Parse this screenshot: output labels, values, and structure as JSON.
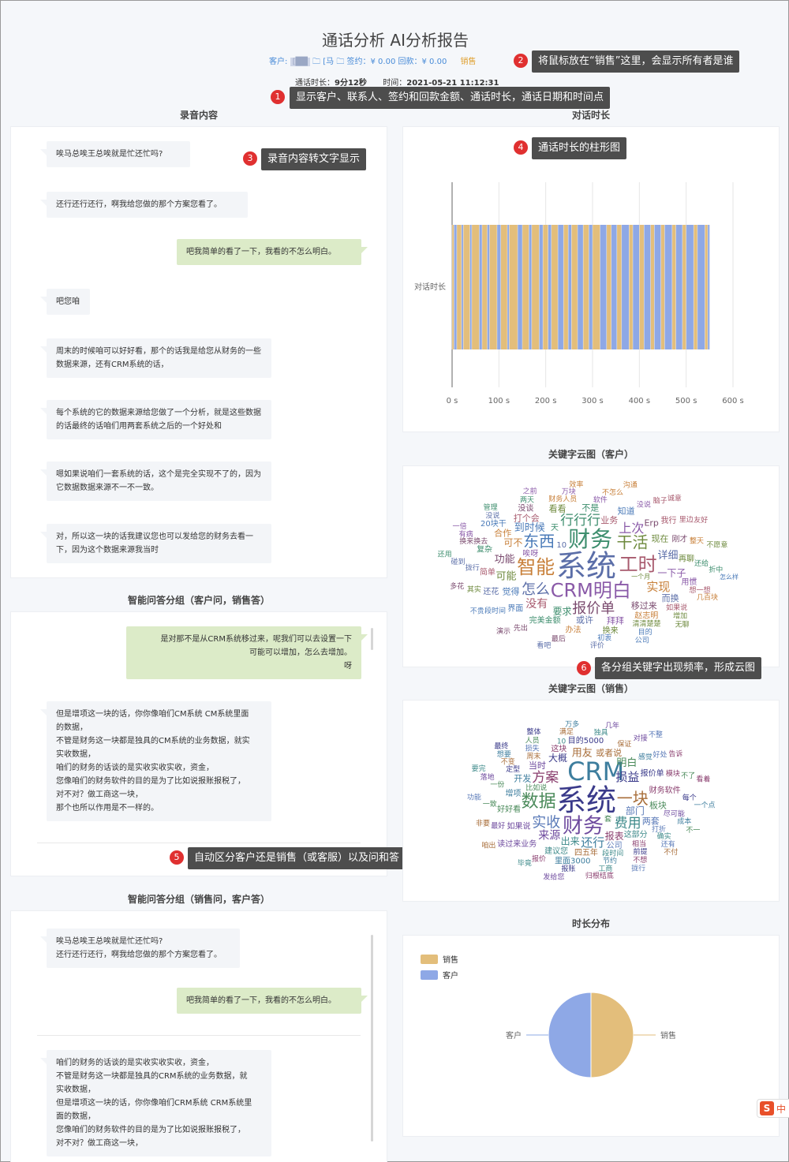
{
  "header": {
    "title": "通话分析 AI分析报告",
    "customer_label": "客户:",
    "customer_name": "[██",
    "contact_name": "[马",
    "sign_label": "签约：",
    "sign_value": "¥ 0.00",
    "refund_label": "回款：",
    "refund_value": "¥ 0.00",
    "sales_label": "销售",
    "duration_label": "通话时长：",
    "duration_value": "9分12秒",
    "time_label": "时间：",
    "time_value": "2021-05-21 11:12:31"
  },
  "callouts": [
    {
      "num": "1",
      "text": "显示客户、联系人、签约和回款金额、通话时长，通话日期和时间点"
    },
    {
      "num": "2",
      "text": "将鼠标放在“销售”这里，会显示所有者是谁"
    },
    {
      "num": "3",
      "text": "录音内容转文字显示"
    },
    {
      "num": "4",
      "text": "通话时长的柱形图"
    },
    {
      "num": "5",
      "text": "自动区分客户还是销售（或客服）以及问和答"
    },
    {
      "num": "6",
      "text": "各分组关键字出现频率，形成云图"
    }
  ],
  "sections": {
    "recording": "录音内容",
    "duration": "对话时长",
    "qa_customer": "智能问答分组（客户问，销售答）",
    "qa_sales": "智能问答分组（销售问，客户答）",
    "wc_customer": "关键字云图（客户）",
    "wc_sales": "关键字云图（销售）",
    "distribution": "时长分布"
  },
  "recording_messages": [
    {
      "side": "left",
      "text": "唉马总唉王总唉就是忙还忙吗?"
    },
    {
      "side": "left",
      "text": "还行还行还行，啊我给您做的那个方案您看了。"
    },
    {
      "side": "right",
      "text": "吧我简单的看了一下，我看的不怎么明白。"
    },
    {
      "side": "left",
      "text": "吧您咱"
    },
    {
      "side": "left",
      "text": "周末的时候咱可以好好看，那个的话我是给您从财务的一些数据来源，还有CRM系统的话，"
    },
    {
      "side": "left",
      "text": "每个系统的它的数据来源给您做了一个分析，就是这些数据的话最终的话咱们用两套系统之后的一个好处和"
    },
    {
      "side": "left",
      "text": "嗯如果说咱们一套系统的话，这个是完全实现不了的，因为它数据数据来源不一不一致。"
    },
    {
      "side": "left",
      "text": "对，所以这一块的话我建议您也可以发给您的财务去看一下，因为这个数据来源我当时"
    }
  ],
  "qa_customer_messages": [
    {
      "side": "right",
      "lines": [
        "是对那不是从CRM系统移过来，呢我们可以去设置一下",
        "可能可以增加，怎么去增加。"
      ],
      "end": "呀"
    },
    {
      "side": "left",
      "lines": [
        "但是增项这一块的话，你你像咱们CM系统 CM系统里面",
        "的数据，",
        "不管是财务这一块都是独具的CM系统的业务数据，就实",
        "实收数据，",
        "咱们的财务的话谈的是实收实收实收，资金，",
        "您像咱们的财务软件的目的是为了比如说报账报税了，",
        "对不对？做工商这一块，",
        "那个也所以作用是不一样的。"
      ]
    }
  ],
  "qa_sales_messages": [
    {
      "side": "left",
      "lines": [
        "唉马总唉王总唉就是忙还忙吗?",
        "还行还行还行，啊我给您做的那个方案您看了。"
      ]
    },
    {
      "side": "right",
      "lines": [
        "吧我简单的看了一下，我看的不怎么明白。"
      ]
    },
    {
      "side": "left",
      "lines": [
        "咱们的财务的话谈的是实收实收实收，资金，",
        "不管是财务这一块都是独具的CRM系统的业务数据，就",
        "实收数据，",
        "但是增项这一块的话，你你像咱们CRM系统 CRM系统里",
        "面的数据，",
        "您像咱们的财务软件的目的是为了比如说报账报税了，",
        "对不对？做工商这一块，"
      ]
    }
  ],
  "chart_data": [
    {
      "type": "bar",
      "orientation": "horizontal",
      "categories": [
        "对话时长"
      ],
      "xlim": [
        0,
        600
      ],
      "x_ticks": [
        "0 s",
        "100 s",
        "200 s",
        "300 s",
        "400 s",
        "500 s",
        "600 s"
      ],
      "total": 550,
      "series": [
        {
          "name": "销售",
          "color": "#e3be7b"
        },
        {
          "name": "客户",
          "color": "#8ea8e6"
        }
      ],
      "segments": [
        [
          0,
          4,
          0
        ],
        [
          4,
          10,
          1
        ],
        [
          10,
          20,
          0
        ],
        [
          20,
          24,
          1
        ],
        [
          24,
          38,
          0
        ],
        [
          38,
          42,
          1
        ],
        [
          42,
          58,
          0
        ],
        [
          58,
          64,
          1
        ],
        [
          64,
          75,
          0
        ],
        [
          75,
          80,
          1
        ],
        [
          80,
          96,
          0
        ],
        [
          96,
          104,
          1
        ],
        [
          104,
          118,
          0
        ],
        [
          118,
          122,
          1
        ],
        [
          122,
          140,
          0
        ],
        [
          140,
          150,
          1
        ],
        [
          150,
          164,
          0
        ],
        [
          164,
          170,
          1
        ],
        [
          170,
          186,
          0
        ],
        [
          186,
          194,
          1
        ],
        [
          194,
          205,
          0
        ],
        [
          205,
          212,
          1
        ],
        [
          212,
          226,
          0
        ],
        [
          226,
          238,
          1
        ],
        [
          238,
          248,
          0
        ],
        [
          248,
          255,
          1
        ],
        [
          255,
          268,
          0
        ],
        [
          268,
          280,
          1
        ],
        [
          280,
          292,
          0
        ],
        [
          292,
          300,
          1
        ],
        [
          300,
          316,
          0
        ],
        [
          316,
          330,
          1
        ],
        [
          330,
          340,
          0
        ],
        [
          340,
          352,
          1
        ],
        [
          352,
          362,
          0
        ],
        [
          362,
          378,
          1
        ],
        [
          378,
          386,
          0
        ],
        [
          386,
          400,
          1
        ],
        [
          400,
          410,
          0
        ],
        [
          410,
          424,
          1
        ],
        [
          424,
          432,
          0
        ],
        [
          432,
          446,
          1
        ],
        [
          446,
          454,
          0
        ],
        [
          454,
          470,
          1
        ],
        [
          470,
          478,
          0
        ],
        [
          478,
          492,
          1
        ],
        [
          492,
          500,
          0
        ],
        [
          500,
          516,
          1
        ],
        [
          516,
          524,
          0
        ],
        [
          524,
          540,
          1
        ],
        [
          540,
          546,
          0
        ],
        [
          546,
          550,
          1
        ]
      ]
    },
    {
      "type": "pie",
      "title": "时长分布",
      "labels": [
        "销售",
        "客户"
      ],
      "values": [
        50,
        50
      ],
      "colors": [
        "#e3be7b",
        "#8ea8e6"
      ],
      "legend": "top-left"
    }
  ],
  "wordcloud_customer": {
    "colors": [
      "#5b6ea8",
      "#3e8e6e",
      "#8a5aa8",
      "#c8803a",
      "#a85a6e",
      "#6e8a3e",
      "#4a7ab8",
      "#7a4a6e"
    ],
    "words": [
      {
        "t": "系统",
        "s": 38
      },
      {
        "t": "财务",
        "s": 28
      },
      {
        "t": "CRM明白",
        "s": 24
      },
      {
        "t": "智能",
        "s": 24
      },
      {
        "t": "工时",
        "s": 24
      },
      {
        "t": "干活",
        "s": 20
      },
      {
        "t": "报价单",
        "s": 18
      },
      {
        "t": "东西",
        "s": 20
      },
      {
        "t": "怎么",
        "s": 18
      },
      {
        "t": "行行行",
        "s": 17
      },
      {
        "t": "上次",
        "s": 16
      },
      {
        "t": "实现",
        "s": 15
      },
      {
        "t": "没有",
        "s": 14
      },
      {
        "t": "可能",
        "s": 13
      },
      {
        "t": "到时候",
        "s": 13
      },
      {
        "t": "功能",
        "s": 13
      },
      {
        "t": "详细",
        "s": 13
      },
      {
        "t": "要求",
        "s": 12
      },
      {
        "t": "一下子",
        "s": 12
      },
      {
        "t": "可不",
        "s": 12
      },
      {
        "t": "业务",
        "s": 11
      },
      {
        "t": "现在",
        "s": 11
      },
      {
        "t": "觉得",
        "s": 11
      },
      {
        "t": "移过来",
        "s": 11
      },
      {
        "t": "或许",
        "s": 11
      },
      {
        "t": "完美金额",
        "s": 10
      },
      {
        "t": "不是",
        "s": 11
      },
      {
        "t": "拜拜",
        "s": 11
      },
      {
        "t": "合作",
        "s": 11
      },
      {
        "t": "打个会",
        "s": 11
      },
      {
        "t": "看看",
        "s": 11
      },
      {
        "t": "唉呀",
        "s": 10
      },
      {
        "t": "知道",
        "s": 11
      },
      {
        "t": "赵志明",
        "s": 10
      },
      {
        "t": "简单",
        "s": 10
      },
      {
        "t": "再聊",
        "s": 10
      },
      {
        "t": "界面",
        "s": 10
      },
      {
        "t": "刚才",
        "s": 10
      },
      {
        "t": "还花",
        "s": 10
      },
      {
        "t": "软件",
        "s": 9
      },
      {
        "t": "财务人员",
        "s": 9
      },
      {
        "t": "如果说",
        "s": 9
      },
      {
        "t": "清清楚楚",
        "s": 9
      },
      {
        "t": "段时间",
        "s": 9
      },
      {
        "t": "换来换去",
        "s": 9
      },
      {
        "t": "拢行",
        "s": 9
      },
      {
        "t": "还给",
        "s": 9
      },
      {
        "t": "没说",
        "s": 9
      },
      {
        "t": "整天",
        "s": 9
      },
      {
        "t": "想一想",
        "s": 9
      },
      {
        "t": "其实",
        "s": 9
      },
      {
        "t": "初衷",
        "s": 9
      },
      {
        "t": "先出",
        "s": 9
      },
      {
        "t": "没说",
        "s": 9
      },
      {
        "t": "两天",
        "s": 9
      },
      {
        "t": "万块",
        "s": 9
      },
      {
        "t": "不怎么",
        "s": 9
      },
      {
        "t": "里边",
        "s": 9
      },
      {
        "t": "增加",
        "s": 9
      },
      {
        "t": "目的",
        "s": 9
      },
      {
        "t": "最后",
        "s": 9
      },
      {
        "t": "碰到",
        "s": 9
      },
      {
        "t": "折中",
        "s": 9
      },
      {
        "t": "有病",
        "s": 9
      },
      {
        "t": "几百块",
        "s": 9
      },
      {
        "t": "一个月",
        "s": 8
      },
      {
        "t": "怎么样",
        "s": 8
      },
      {
        "t": "脑子",
        "s": 9
      },
      {
        "t": "不愿意",
        "s": 9
      },
      {
        "t": "不贵",
        "s": 9
      },
      {
        "t": "多花",
        "s": 9
      },
      {
        "t": "评价",
        "s": 9
      },
      {
        "t": "管理",
        "s": 9
      },
      {
        "t": "之前",
        "s": 9
      },
      {
        "t": "效率",
        "s": 9
      },
      {
        "t": "友好",
        "s": 9
      },
      {
        "t": "无聊",
        "s": 9
      },
      {
        "t": "公司",
        "s": 9
      },
      {
        "t": "演示",
        "s": 9
      },
      {
        "t": "看吧",
        "s": 9
      },
      {
        "t": "还用",
        "s": 9
      },
      {
        "t": "一倍",
        "s": 9
      },
      {
        "t": "复杂",
        "s": 10
      },
      {
        "t": "用惯",
        "s": 10
      },
      {
        "t": "办法",
        "s": 10
      },
      {
        "t": "沟通",
        "s": 9
      },
      {
        "t": "我行",
        "s": 10
      },
      {
        "t": "换来",
        "s": 10
      },
      {
        "t": "20块干",
        "s": 10
      },
      {
        "t": "Erp",
        "s": 11
      },
      {
        "t": "没谈",
        "s": 10
      },
      {
        "t": "而换",
        "s": 11
      },
      {
        "t": "10",
        "s": 10
      },
      {
        "t": "诚意",
        "s": 9
      },
      {
        "t": "天",
        "s": 10
      }
    ]
  },
  "wordcloud_sales": {
    "colors": [
      "#3a3a8a",
      "#3e7e9e",
      "#6e4a9e",
      "#4a8a5a",
      "#a86e3a",
      "#5a7ab8",
      "#8a3e6e",
      "#3e8a8a"
    ],
    "words": [
      {
        "t": "系统",
        "s": 38
      },
      {
        "t": "CRM",
        "s": 32
      },
      {
        "t": "财务",
        "s": 26
      },
      {
        "t": "数据",
        "s": 22
      },
      {
        "t": "一块",
        "s": 20
      },
      {
        "t": "实收",
        "s": 18
      },
      {
        "t": "方案",
        "s": 17
      },
      {
        "t": "费用",
        "s": 17
      },
      {
        "t": "损益",
        "s": 15
      },
      {
        "t": "还行",
        "s": 15
      },
      {
        "t": "明白",
        "s": 13
      },
      {
        "t": "来源",
        "s": 14
      },
      {
        "t": "用友",
        "s": 13
      },
      {
        "t": "部门",
        "s": 12
      },
      {
        "t": "报表",
        "s": 12
      },
      {
        "t": "出来",
        "s": 12
      },
      {
        "t": "大概",
        "s": 12
      },
      {
        "t": "开发",
        "s": 11
      },
      {
        "t": "当时",
        "s": 11
      },
      {
        "t": "板块",
        "s": 11
      },
      {
        "t": "或者说",
        "s": 11
      },
      {
        "t": "两套",
        "s": 11
      },
      {
        "t": "财务软件",
        "s": 10
      },
      {
        "t": "这部分",
        "s": 10
      },
      {
        "t": "报价单",
        "s": 10
      },
      {
        "t": "增项",
        "s": 10
      },
      {
        "t": "如果说",
        "s": 10
      },
      {
        "t": "好好看",
        "s": 10
      },
      {
        "t": "四五年",
        "s": 10
      },
      {
        "t": "公司",
        "s": 10
      },
      {
        "t": "这块",
        "s": 10
      },
      {
        "t": "建议您",
        "s": 10
      },
      {
        "t": "目的5000",
        "s": 10
      },
      {
        "t": "里面3000",
        "s": 10
      },
      {
        "t": "读过来业务",
        "s": 10
      },
      {
        "t": "比如说",
        "s": 9
      },
      {
        "t": "周末",
        "s": 9
      },
      {
        "t": "打折",
        "s": 9
      },
      {
        "t": "相当",
        "s": 9
      },
      {
        "t": "段时间",
        "s": 9
      },
      {
        "t": "定型",
        "s": 9
      },
      {
        "t": "感觉",
        "s": 9
      },
      {
        "t": "尽可能",
        "s": 9
      },
      {
        "t": "一份",
        "s": 9
      },
      {
        "t": "保证",
        "s": 9
      },
      {
        "t": "损失",
        "s": 9
      },
      {
        "t": "模块",
        "s": 9
      },
      {
        "t": "确实",
        "s": 9
      },
      {
        "t": "前提",
        "s": 9
      },
      {
        "t": "节约",
        "s": 9
      },
      {
        "t": "最好",
        "s": 9
      },
      {
        "t": "一致",
        "s": 9
      },
      {
        "t": "不变",
        "s": 9
      },
      {
        "t": "好处",
        "s": 9
      },
      {
        "t": "报价",
        "s": 9
      },
      {
        "t": "独具",
        "s": 9
      },
      {
        "t": "每个",
        "s": 9
      },
      {
        "t": "成本",
        "s": 9
      },
      {
        "t": "落地",
        "s": 9
      },
      {
        "t": "人员",
        "s": 9
      },
      {
        "t": "满足",
        "s": 9
      },
      {
        "t": "还有",
        "s": 9
      },
      {
        "t": "不想",
        "s": 9
      },
      {
        "t": "工商",
        "s": 9
      },
      {
        "t": "报账",
        "s": 9
      },
      {
        "t": "想要",
        "s": 9
      },
      {
        "t": "对接",
        "s": 9
      },
      {
        "t": "不了",
        "s": 9
      },
      {
        "t": "非要",
        "s": 9
      },
      {
        "t": "功能",
        "s": 9
      },
      {
        "t": "告诉",
        "s": 9
      },
      {
        "t": "毕竟",
        "s": 9
      },
      {
        "t": "整体",
        "s": 9
      },
      {
        "t": "万多",
        "s": 9
      },
      {
        "t": "几年",
        "s": 9
      },
      {
        "t": "不一",
        "s": 9
      },
      {
        "t": "不付",
        "s": 9
      },
      {
        "t": "拢行",
        "s": 9
      },
      {
        "t": "归根结底",
        "s": 9
      },
      {
        "t": "要完",
        "s": 9
      },
      {
        "t": "最终",
        "s": 9
      },
      {
        "t": "一个点",
        "s": 9
      },
      {
        "t": "发给您",
        "s": 9
      },
      {
        "t": "套",
        "s": 9
      },
      {
        "t": "咱出",
        "s": 9
      },
      {
        "t": "不整",
        "s": 9
      },
      {
        "t": "看着",
        "s": 9
      },
      {
        "t": "10",
        "s": 9
      }
    ]
  }
}
